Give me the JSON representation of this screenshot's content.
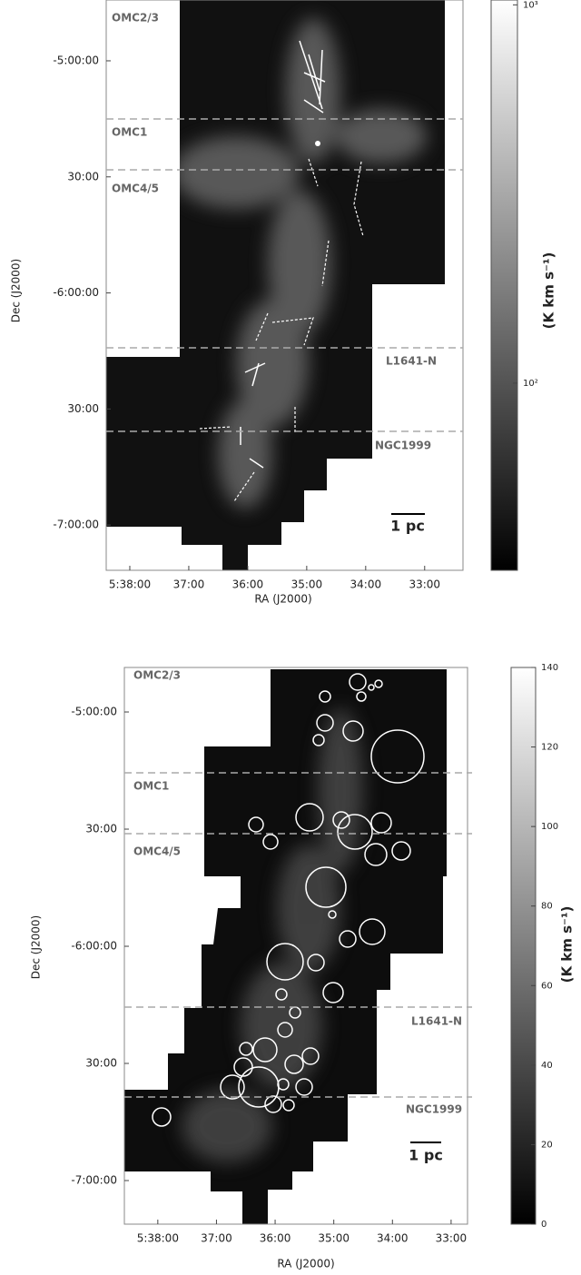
{
  "chart_data": [
    {
      "type": "map",
      "xlabel": "RA (J2000)",
      "ylabel": "Dec (J2000)",
      "xlim": [
        38.4,
        32.35
      ],
      "xticks": [
        {
          "value": 38,
          "label": "5:38:00"
        },
        {
          "value": 37,
          "label": "37:00"
        },
        {
          "value": 36,
          "label": "36:00"
        },
        {
          "value": 35,
          "label": "35:00"
        },
        {
          "value": 34,
          "label": "34:00"
        },
        {
          "value": 33,
          "label": "33:00"
        }
      ],
      "ylim": [
        -4.738,
        -7.195
      ],
      "yticks": [
        {
          "value": -5,
          "label": "-5:00:00"
        },
        {
          "value": -5.5,
          "label": "30:00"
        },
        {
          "value": -6,
          "label": "-6:00:00"
        },
        {
          "value": -6.5,
          "label": "30:00"
        },
        {
          "value": -7,
          "label": "-7:00:00"
        }
      ],
      "colorbar": {
        "label": "(K km s⁻¹)",
        "log": true,
        "lim": [
          32,
          1030
        ],
        "ticks": [
          {
            "value": 100,
            "label": "10²"
          },
          {
            "value": 1000,
            "label": "10³"
          }
        ]
      },
      "regions": [
        "OMC2/3",
        "OMC1",
        "OMC4/5",
        "L1641-N",
        "NGC1999"
      ],
      "scale_bar": "1 pc"
    },
    {
      "type": "map",
      "xlabel": "RA (J2000)",
      "ylabel": "Dec (J2000)",
      "xlim": [
        38.57,
        32.72
      ],
      "xticks": [
        {
          "value": 38,
          "label": "5:38:00"
        },
        {
          "value": 37,
          "label": "37:00"
        },
        {
          "value": 36,
          "label": "36:00"
        },
        {
          "value": 35,
          "label": "35:00"
        },
        {
          "value": 34,
          "label": "34:00"
        },
        {
          "value": 33,
          "label": "33:00"
        }
      ],
      "ylim": [
        -4.81,
        -7.186
      ],
      "yticks": [
        {
          "value": -5,
          "label": "-5:00:00"
        },
        {
          "value": -5.5,
          "label": "30:00"
        },
        {
          "value": -6,
          "label": "-6:00:00"
        },
        {
          "value": -6.5,
          "label": "30:00"
        },
        {
          "value": -7,
          "label": "-7:00:00"
        }
      ],
      "colorbar": {
        "label": "(K km s⁻¹)",
        "log": false,
        "lim": [
          0,
          140
        ],
        "ticks": [
          0,
          20,
          40,
          60,
          80,
          100,
          120,
          140
        ]
      },
      "regions": [
        "OMC2/3",
        "OMC1",
        "OMC4/5",
        "L1641-N",
        "NGC1999"
      ],
      "scale_bar": "1 pc"
    }
  ]
}
